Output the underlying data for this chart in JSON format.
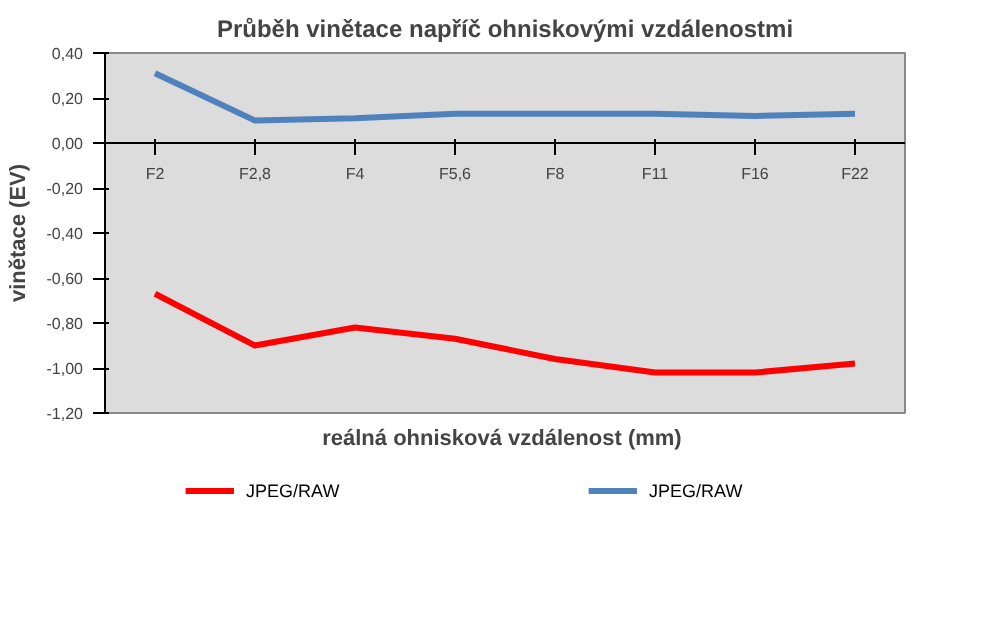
{
  "chart_data": {
    "type": "line",
    "title": "Průběh vinětace napříč ohniskovými vzdálenostmi",
    "xlabel": "reálná ohnisková  vzdálenost (mm)",
    "ylabel": "vinětace (EV)",
    "categories": [
      "F2",
      "F2,8",
      "F4",
      "F5,6",
      "F8",
      "F11",
      "F16",
      "F22"
    ],
    "series": [
      {
        "name": "JPEG/RAW",
        "color": "#ff0000",
        "values": [
          -0.67,
          -0.9,
          -0.82,
          -0.87,
          -0.96,
          -1.02,
          -1.02,
          -0.98
        ]
      },
      {
        "name": "JPEG/RAW",
        "color": "#4f81bd",
        "values": [
          0.31,
          0.1,
          0.11,
          0.13,
          0.13,
          0.13,
          0.12,
          0.13
        ]
      }
    ],
    "ylim": [
      -1.2,
      0.4
    ],
    "yticks": [
      {
        "value": -1.2,
        "label": "-1,20"
      },
      {
        "value": -1.0,
        "label": "-1,00"
      },
      {
        "value": -0.8,
        "label": "-0,80"
      },
      {
        "value": -0.6,
        "label": "-0,60"
      },
      {
        "value": -0.4,
        "label": "-0,40"
      },
      {
        "value": -0.2,
        "label": "-0,20"
      },
      {
        "value": 0,
        "label": "0,00"
      },
      {
        "value": 0.2,
        "label": "0,20"
      },
      {
        "value": 0.4,
        "label": "0,40"
      }
    ],
    "legend": "bottom",
    "marker": "none",
    "line_style": "solid"
  }
}
